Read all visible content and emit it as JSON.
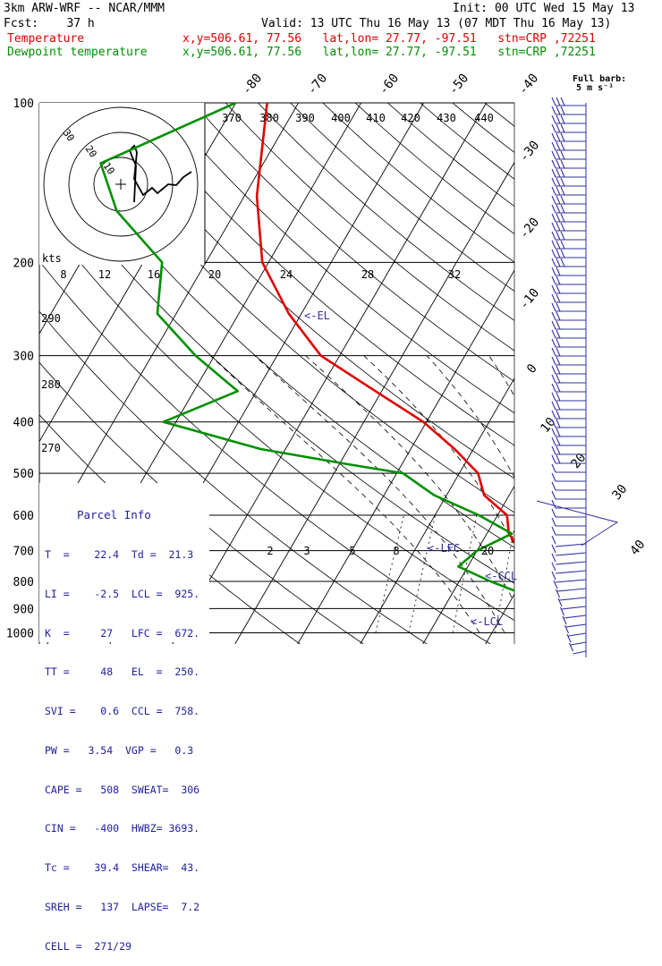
{
  "header": {
    "model": "3km ARW-WRF -- NCAR/MMM",
    "init": "Init: 00 UTC Wed 15 May 13",
    "fcst": "Fcst:    37 h",
    "valid": "Valid: 13 UTC Thu 16 May 13 (07 MDT Thu 16 May 13)",
    "temp_label": "Temperature",
    "temp_info": "x,y=506.61, 77.56   lat,lon= 27.77, -97.51   stn=CRP ,72251",
    "dew_label": "Dewpoint temperature",
    "dew_info": "x,y=506.61, 77.56   lat,lon= 27.77, -97.51   stn=CRP ,72251",
    "barb_legend_1": "Full barb:",
    "barb_legend_2": "5 m s⁻¹"
  },
  "colors": {
    "temperature": "#e00000",
    "dewpoint": "#009000",
    "lines": "#000000",
    "barbs": "#3030a0",
    "annot": "#3030a0"
  },
  "chart_data": {
    "type": "line",
    "title": "",
    "pressure_levels": [
      "100",
      "200",
      "300",
      "400",
      "500",
      "600",
      "700",
      "800",
      "900",
      "1000"
    ],
    "series": [
      {
        "name": "Temperature",
        "pressure": [
          100,
          150,
          200,
          250,
          300,
          350,
          400,
          450,
          500,
          550,
          600,
          650,
          700,
          750,
          800,
          850,
          900,
          925,
          950,
          975,
          985
        ],
        "temp_c": [
          -75,
          -68,
          -61,
          -52,
          -43,
          -31,
          -20.5,
          -13,
          -7,
          -4,
          1.5,
          3.5,
          7,
          11,
          14.5,
          17.5,
          21,
          22.5,
          21.5,
          21.2,
          22.4
        ]
      },
      {
        "name": "Dewpoint temperature",
        "pressure": [
          100,
          130,
          160,
          200,
          250,
          300,
          350,
          400,
          450,
          480,
          500,
          550,
          600,
          650,
          700,
          750,
          800,
          850,
          900,
          925,
          950,
          985
        ],
        "temp_c": [
          -80,
          -96,
          -89,
          -77,
          -73,
          -63,
          -53,
          -62,
          -44,
          -29,
          -19,
          -12,
          -3,
          4,
          0,
          -1.5,
          5,
          12,
          16,
          18,
          19.5,
          21.3
        ]
      }
    ],
    "temp_axis_labels": [
      "-80",
      "-70",
      "-60",
      "-50",
      "-40",
      "-30",
      "-20",
      "-10",
      "0",
      "10",
      "20",
      "30",
      "40"
    ],
    "theta_labels": [
      "370",
      "380",
      "390",
      "400",
      "410",
      "420",
      "430",
      "440"
    ],
    "theta_low_labels": [
      "290",
      "280",
      "270"
    ],
    "mixing_ratio_labels": [
      "2",
      "3",
      "5",
      "8",
      "20"
    ],
    "hodograph_speed_labels": [
      "8",
      "12",
      "16",
      "20",
      "24",
      "28",
      "32"
    ],
    "hodograph_kts": "kts",
    "hodograph_rings": [
      "30",
      "20",
      "10"
    ],
    "level_annotations": [
      "<-EL",
      "<-LFC",
      "<-CCL",
      "<-LCL"
    ]
  },
  "parcel_info": {
    "title": "Parcel Info",
    "rows": [
      "T  =    22.4  Td =  21.3",
      "LI =    -2.5  LCL =  925.",
      "K  =     27   LFC =  672.",
      "TT =     48   EL  =  250.",
      "SVI =    0.6  CCL =  758.",
      "PW =   3.54  VGP =   0.3",
      "CAPE =   508  SWEAT=  306",
      "CIN =   -400  HWBZ= 3693.",
      "Tc =    39.4  SHEAR=  43.",
      "SREH =   137  LAPSE=  7.2",
      "CELL =  271/29"
    ]
  }
}
